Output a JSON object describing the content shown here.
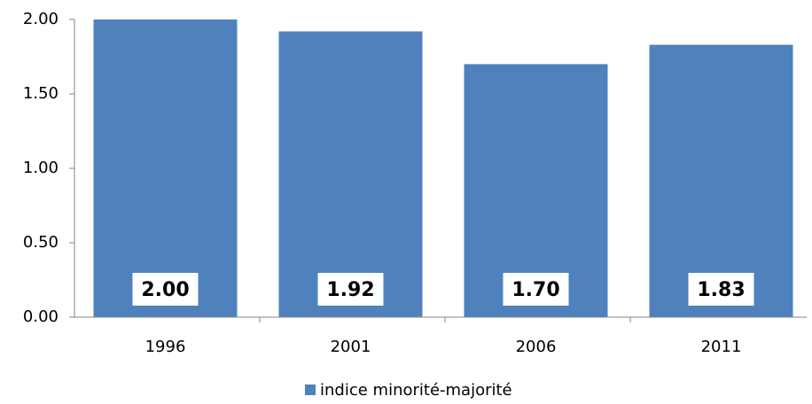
{
  "chart_data": {
    "type": "bar",
    "categories": [
      "1996",
      "2001",
      "2006",
      "2011"
    ],
    "series": [
      {
        "name": "indice minorité-majorité",
        "color": "#4f81bd",
        "values": [
          2.0,
          1.92,
          1.7,
          1.83
        ],
        "value_labels": [
          "2.00",
          "1.92",
          "1.70",
          "1.83"
        ]
      }
    ],
    "ylim": [
      0,
      2
    ],
    "yticks": [
      {
        "value": 0,
        "label": "0.00"
      },
      {
        "value": 0.5,
        "label": "0.50"
      },
      {
        "value": 1,
        "label": "1.00"
      },
      {
        "value": 1.5,
        "label": "1.50"
      },
      {
        "value": 2,
        "label": "2.00"
      }
    ],
    "grid": false,
    "legend": "bottom"
  }
}
